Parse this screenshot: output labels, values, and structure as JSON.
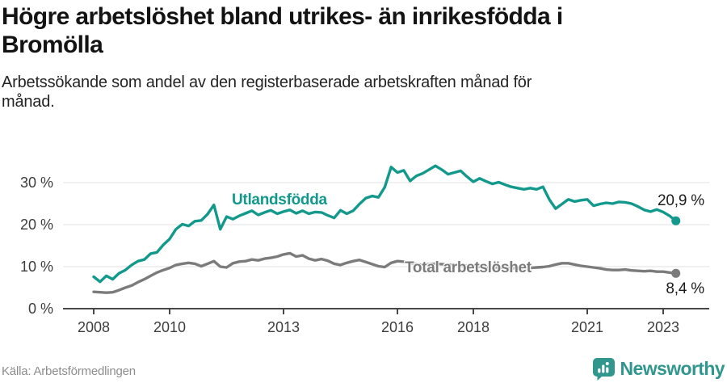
{
  "header": {
    "title": "Högre arbetslöshet bland utrikes- än inrikesfödda i Bromölla",
    "subtitle": "Arbetssökande som andel av den registerbaserade arbetskraften månad för månad."
  },
  "footer": {
    "source": "Källa: Arbetsförmedlingen",
    "brand": "Newsworthy"
  },
  "colors": {
    "accent_teal": "#12998c",
    "line_gray": "#7b7b7b",
    "axis": "#474747",
    "grid": "#e0e0e0",
    "tick_text": "#3d3d3d",
    "brand_teal": "#31978e"
  },
  "chart_data": {
    "type": "line",
    "title": "Högre arbetslöshet bland utrikes- än inrikesfödda i Bromölla",
    "subtitle": "Arbetssökande som andel av den registerbaserade arbetskraften månad för månad.",
    "source": "Källa: Arbetsförmedlingen",
    "x_unit": "year",
    "y_unit": "%",
    "x_start": 2008.0,
    "x_step_years": 0.1666667,
    "xlim": [
      2008,
      2023.4
    ],
    "ylim": [
      0,
      36
    ],
    "grid": true,
    "legend_position": "inline-labels",
    "x_ticks": [
      2008,
      2010,
      2013,
      2016,
      2018,
      2021,
      2023
    ],
    "x_tick_labels": [
      "2008",
      "2010",
      "2013",
      "2016",
      "2018",
      "2021",
      "2023"
    ],
    "y_ticks": [
      0,
      10,
      20,
      30
    ],
    "y_tick_suffix": " %",
    "series": [
      {
        "name": "Utlandsfödda",
        "color": "#12998c",
        "end_value": 20.9,
        "end_label": "20,9 %",
        "values": [
          7.6,
          6.4,
          7.8,
          7.0,
          8.4,
          9.2,
          10.4,
          11.3,
          11.7,
          13.1,
          13.4,
          15.2,
          16.6,
          18.9,
          20.1,
          19.7,
          20.8,
          21.0,
          22.5,
          24.7,
          18.9,
          21.9,
          21.3,
          22.1,
          22.7,
          23.3,
          22.3,
          22.9,
          23.4,
          22.6,
          23.1,
          23.5,
          22.7,
          23.3,
          22.6,
          23.0,
          22.9,
          22.2,
          21.6,
          23.4,
          22.6,
          23.3,
          24.9,
          26.3,
          26.8,
          26.5,
          28.9,
          33.7,
          32.4,
          32.9,
          30.4,
          31.6,
          32.2,
          33.1,
          34.0,
          33.1,
          32.0,
          32.4,
          32.8,
          31.4,
          30.2,
          31.0,
          30.3,
          29.7,
          30.1,
          29.5,
          29.0,
          28.7,
          28.4,
          28.7,
          28.4,
          29.0,
          26.0,
          23.8,
          24.9,
          26.0,
          25.5,
          25.8,
          26.0,
          24.5,
          24.9,
          25.2,
          25.0,
          25.4,
          25.3,
          25.0,
          24.3,
          23.5,
          23.1,
          23.6,
          23.0,
          22.1,
          20.9
        ]
      },
      {
        "name": "Total arbetslöshet",
        "color": "#7b7b7b",
        "end_value": 8.4,
        "end_label": "8,4 %",
        "values": [
          4.0,
          3.9,
          3.8,
          3.9,
          4.4,
          5.0,
          5.5,
          6.3,
          7.0,
          7.8,
          8.6,
          9.2,
          9.7,
          10.4,
          10.7,
          10.9,
          10.7,
          10.1,
          10.7,
          11.3,
          10.0,
          9.8,
          10.8,
          11.2,
          11.3,
          11.7,
          11.5,
          11.9,
          12.1,
          12.4,
          12.9,
          13.2,
          12.4,
          12.7,
          11.9,
          11.5,
          11.8,
          11.4,
          10.7,
          10.4,
          10.9,
          11.3,
          11.6,
          11.1,
          10.6,
          10.1,
          9.9,
          10.9,
          11.3,
          11.2,
          10.9,
          10.6,
          10.4,
          10.6,
          10.7,
          10.6,
          10.5,
          10.3,
          10.2,
          10.2,
          10.1,
          10.0,
          9.9,
          9.8,
          9.8,
          9.7,
          9.7,
          9.6,
          9.6,
          9.7,
          9.8,
          9.9,
          10.1,
          10.5,
          10.8,
          10.8,
          10.5,
          10.2,
          10.0,
          9.8,
          9.6,
          9.3,
          9.2,
          9.2,
          9.3,
          9.1,
          9.0,
          8.9,
          9.0,
          8.8,
          8.8,
          8.6,
          8.4
        ]
      }
    ]
  }
}
